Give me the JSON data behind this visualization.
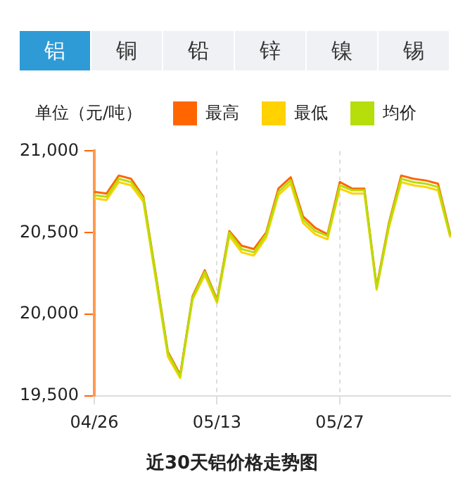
{
  "chart_data": {
    "type": "line",
    "title": "近30天铝价格走势图",
    "ylabel": "单位（元/吨）",
    "annotations": [
      "铝",
      "铜",
      "铅",
      "锌",
      "镍",
      "锡"
    ],
    "categories": [
      "04/26",
      null,
      null,
      null,
      null,
      null,
      null,
      null,
      null,
      null,
      "05/13",
      null,
      null,
      null,
      null,
      null,
      null,
      null,
      null,
      null,
      "05/27",
      null,
      null,
      null,
      null,
      null,
      null,
      null,
      null,
      null
    ],
    "series": [
      {
        "name": "最高",
        "color": "#ff6600",
        "values": [
          20750,
          20740,
          20850,
          20830,
          20720,
          20250,
          19770,
          19630,
          20110,
          20270,
          20090,
          20510,
          20420,
          20400,
          20500,
          20770,
          20840,
          20600,
          20530,
          20490,
          20810,
          20770,
          20770,
          20170,
          20560,
          20850,
          20830,
          20820,
          20800,
          20490
        ]
      },
      {
        "name": "最低",
        "color": "#ffd200",
        "values": [
          20710,
          20700,
          20810,
          20790,
          20690,
          20220,
          19740,
          19610,
          20090,
          20240,
          20070,
          20480,
          20380,
          20360,
          20470,
          20730,
          20800,
          20560,
          20490,
          20460,
          20770,
          20740,
          20740,
          20150,
          20530,
          20810,
          20790,
          20780,
          20760,
          20470
        ]
      },
      {
        "name": "均价",
        "color": "#b5de0a",
        "values": [
          20730,
          20720,
          20830,
          20810,
          20710,
          20240,
          19760,
          19620,
          20100,
          20260,
          20080,
          20500,
          20400,
          20380,
          20490,
          20750,
          20820,
          20580,
          20510,
          20480,
          20790,
          20760,
          20760,
          20160,
          20550,
          20830,
          20810,
          20800,
          20780,
          20480
        ]
      }
    ],
    "ylim": [
      19500,
      21000
    ],
    "yticks": [
      {
        "value": 19500,
        "label": "19,500"
      },
      {
        "value": 20000,
        "label": "20,000"
      },
      {
        "value": 20500,
        "label": "20,500"
      },
      {
        "value": 21000,
        "label": "21,000"
      }
    ],
    "grid": "x",
    "legend": "top",
    "marker": "none",
    "line_style": "solid"
  }
}
